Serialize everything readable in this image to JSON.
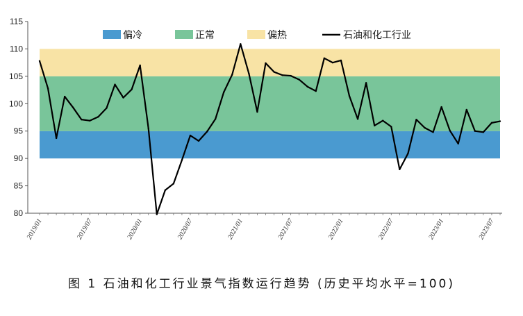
{
  "caption": "图 1 石油和化工行业景气指数运行趋势 (历史平均水平=100)",
  "chart_data": {
    "type": "line",
    "title": "",
    "xlabel": "",
    "ylabel": "",
    "ylim": [
      80,
      115
    ],
    "yticks": [
      80,
      85,
      90,
      95,
      100,
      105,
      110,
      115
    ],
    "xtick_labels": [
      "2019/01",
      "2019/07",
      "2020/01",
      "2020/07",
      "2021/01",
      "2021/07",
      "2022/01",
      "2022/07",
      "2023/01",
      "2023/07"
    ],
    "xtick_index": [
      0,
      6,
      12,
      18,
      24,
      30,
      36,
      42,
      48,
      54
    ],
    "bands": [
      {
        "name": "偏冷",
        "from": 90,
        "to": 95,
        "color": "#4a9ad0"
      },
      {
        "name": "正常",
        "from": 95,
        "to": 105,
        "color": "#79c59a"
      },
      {
        "name": "偏热",
        "from": 105,
        "to": 110,
        "color": "#f8e3a5"
      }
    ],
    "series": [
      {
        "name": "石油和化工行业",
        "color": "#000000",
        "values": [
          107.8,
          102.8,
          93.7,
          101.3,
          99.3,
          97.1,
          96.9,
          97.6,
          99.2,
          103.5,
          101.1,
          102.6,
          107.0,
          95.5,
          79.8,
          84.2,
          85.4,
          89.7,
          94.2,
          93.2,
          94.9,
          97.2,
          102.1,
          105.3,
          110.9,
          105.5,
          98.5,
          107.4,
          105.8,
          105.2,
          105.1,
          104.4,
          103.1,
          102.3,
          108.3,
          107.5,
          107.9,
          101.4,
          97.2,
          103.8,
          96.0,
          96.9,
          95.8,
          88.0,
          90.9,
          97.1,
          95.6,
          94.8,
          99.4,
          95.1,
          92.7,
          98.9,
          95.0,
          94.8,
          96.5,
          96.8
        ]
      }
    ],
    "legend_position": "top",
    "grid": false
  }
}
